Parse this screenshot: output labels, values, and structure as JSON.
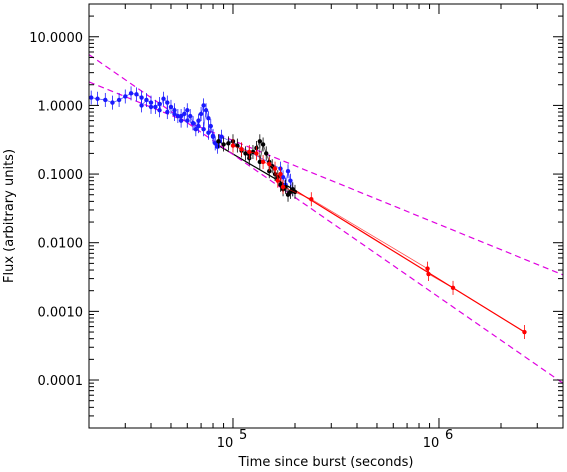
{
  "chart_data": {
    "type": "scatter",
    "xlabel": "Time since burst (seconds)",
    "ylabel": "Flux (arbitrary units)",
    "xscale": "log",
    "yscale": "log",
    "xlim": [
      20000,
      4000000
    ],
    "ylim": [
      2e-05,
      30
    ],
    "x_ticks": [
      {
        "value": 100000,
        "base": "10",
        "exp": "5"
      },
      {
        "value": 1000000,
        "base": "10",
        "exp": "6"
      }
    ],
    "y_ticks": [
      {
        "value": 10,
        "label": "10.0000"
      },
      {
        "value": 1,
        "label": "1.0000"
      },
      {
        "value": 0.1,
        "label": "0.1000"
      },
      {
        "value": 0.01,
        "label": "0.0100"
      },
      {
        "value": 0.001,
        "label": "0.0010"
      },
      {
        "value": 0.0001,
        "label": "0.0001"
      }
    ],
    "colors": {
      "blue": "#1a1aff",
      "black": "#000000",
      "red": "#ff0000",
      "magenta_dashed": "#e000e0"
    },
    "series": [
      {
        "color": "blue",
        "style": "points-with-error-bars",
        "points": [
          [
            20500,
            1.3
          ],
          [
            22000,
            1.25
          ],
          [
            24000,
            1.2
          ],
          [
            26000,
            1.1
          ],
          [
            28000,
            1.2
          ],
          [
            30000,
            1.35
          ],
          [
            32000,
            1.5
          ],
          [
            34000,
            1.45
          ],
          [
            36000,
            1.3
          ],
          [
            38000,
            1.2
          ],
          [
            40000,
            1.1
          ],
          [
            42000,
            0.95
          ],
          [
            44000,
            1.05
          ],
          [
            46000,
            1.25
          ],
          [
            48000,
            1.1
          ],
          [
            50000,
            0.95
          ],
          [
            52000,
            0.85
          ],
          [
            54000,
            0.7
          ],
          [
            56000,
            0.6
          ],
          [
            58000,
            0.75
          ],
          [
            60000,
            0.85
          ],
          [
            62000,
            0.7
          ],
          [
            64000,
            0.55
          ],
          [
            66000,
            0.45
          ],
          [
            68000,
            0.6
          ],
          [
            70000,
            0.75
          ],
          [
            72000,
            1.0
          ],
          [
            74000,
            0.85
          ],
          [
            76000,
            0.65
          ],
          [
            78000,
            0.5
          ],
          [
            80000,
            0.35
          ],
          [
            82000,
            0.28
          ],
          [
            84000,
            0.25
          ],
          [
            86000,
            0.3
          ],
          [
            88000,
            0.35
          ],
          [
            36000,
            1.0
          ],
          [
            40000,
            0.95
          ],
          [
            44000,
            0.85
          ],
          [
            48000,
            0.8
          ],
          [
            52000,
            0.75
          ],
          [
            56000,
            0.7
          ],
          [
            60000,
            0.6
          ],
          [
            64000,
            0.55
          ],
          [
            68000,
            0.5
          ],
          [
            72000,
            0.45
          ],
          [
            76000,
            0.4
          ],
          [
            80000,
            0.36
          ],
          [
            170000,
            0.12
          ],
          [
            175000,
            0.09
          ],
          [
            180000,
            0.07
          ],
          [
            185000,
            0.11
          ],
          [
            190000,
            0.08
          ],
          [
            195000,
            0.06
          ]
        ]
      },
      {
        "color": "black",
        "style": "points-with-error-bars",
        "points": [
          [
            85000,
            0.3
          ],
          [
            90000,
            0.27
          ],
          [
            95000,
            0.28
          ],
          [
            100000,
            0.3
          ],
          [
            105000,
            0.26
          ],
          [
            110000,
            0.22
          ],
          [
            115000,
            0.2
          ],
          [
            120000,
            0.19
          ],
          [
            125000,
            0.21
          ],
          [
            130000,
            0.24
          ],
          [
            135000,
            0.3
          ],
          [
            140000,
            0.27
          ],
          [
            145000,
            0.2
          ],
          [
            150000,
            0.15
          ],
          [
            155000,
            0.13
          ],
          [
            160000,
            0.1
          ],
          [
            165000,
            0.09
          ],
          [
            170000,
            0.07
          ],
          [
            175000,
            0.06
          ],
          [
            180000,
            0.065
          ],
          [
            185000,
            0.05
          ],
          [
            190000,
            0.055
          ],
          [
            195000,
            0.06
          ],
          [
            200000,
            0.055
          ],
          [
            120000,
            0.17
          ],
          [
            135000,
            0.15
          ],
          [
            150000,
            0.11
          ]
        ]
      },
      {
        "color": "red",
        "style": "points-with-error-bars",
        "points": [
          [
            100000,
            0.26
          ],
          [
            110000,
            0.23
          ],
          [
            120000,
            0.21
          ],
          [
            130000,
            0.2
          ],
          [
            140000,
            0.15
          ],
          [
            150000,
            0.14
          ],
          [
            160000,
            0.12
          ],
          [
            165000,
            0.08
          ],
          [
            170000,
            0.1
          ],
          [
            175000,
            0.065
          ],
          [
            240000,
            0.043
          ],
          [
            880000,
            0.0042
          ],
          [
            890000,
            0.0035
          ],
          [
            1170000,
            0.0022
          ],
          [
            2600000,
            0.0005
          ]
        ]
      }
    ],
    "lines": [
      {
        "color": "black",
        "style": "solid",
        "points": [
          [
            80000,
            0.29
          ],
          [
            200000,
            0.058
          ]
        ]
      },
      {
        "color": "red",
        "style": "solid",
        "points": [
          [
            200000,
            0.058
          ],
          [
            2600000,
            0.0005
          ]
        ]
      },
      {
        "color": "magenta_dashed",
        "style": "dashed",
        "points": [
          [
            20000,
            5.5
          ],
          [
            4000000,
            9e-05
          ]
        ]
      },
      {
        "color": "magenta_dashed",
        "style": "dashed",
        "points": [
          [
            20000,
            2.2
          ],
          [
            4000000,
            0.0034
          ]
        ]
      }
    ]
  }
}
